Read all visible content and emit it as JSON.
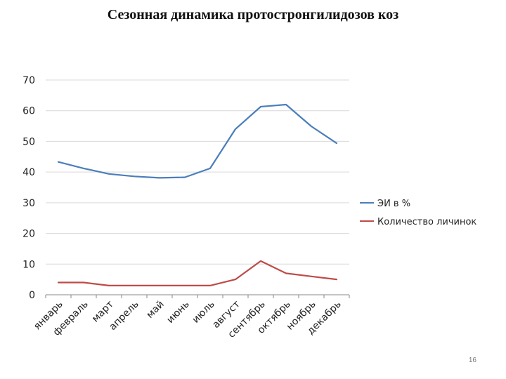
{
  "slide": {
    "title": "Сезонная динамика протостронгилидозов коз",
    "page_number": "16"
  },
  "colors": {
    "series_1": "#4A7EBB",
    "series_2": "#BE4B48",
    "grid": "#d9d9d9",
    "axis": "#888888"
  },
  "chart_data": {
    "type": "line",
    "title": "",
    "xlabel": "",
    "ylabel": "",
    "categories": [
      "январь",
      "февраль",
      "март",
      "апрель",
      "май",
      "июнь",
      "июль",
      "август",
      "сентябрь",
      "октябрь",
      "ноябрь",
      "декабрь"
    ],
    "y_ticks": [
      "0",
      "10",
      "20",
      "30",
      "40",
      "50",
      "60",
      "70"
    ],
    "ylim": [
      0,
      70
    ],
    "grid": true,
    "legend_position": "right",
    "series": [
      {
        "name": "ЭИ в %",
        "color": "#4A7EBB",
        "values": [
          43.3,
          41.2,
          39.4,
          38.6,
          38.1,
          38.3,
          41.2,
          54,
          61.3,
          62,
          54.9,
          49.4
        ]
      },
      {
        "name": "Количество личинок",
        "color": "#BE4B48",
        "values": [
          4,
          4,
          3,
          3,
          3,
          3,
          3,
          5,
          11,
          7,
          6,
          5
        ]
      }
    ]
  }
}
